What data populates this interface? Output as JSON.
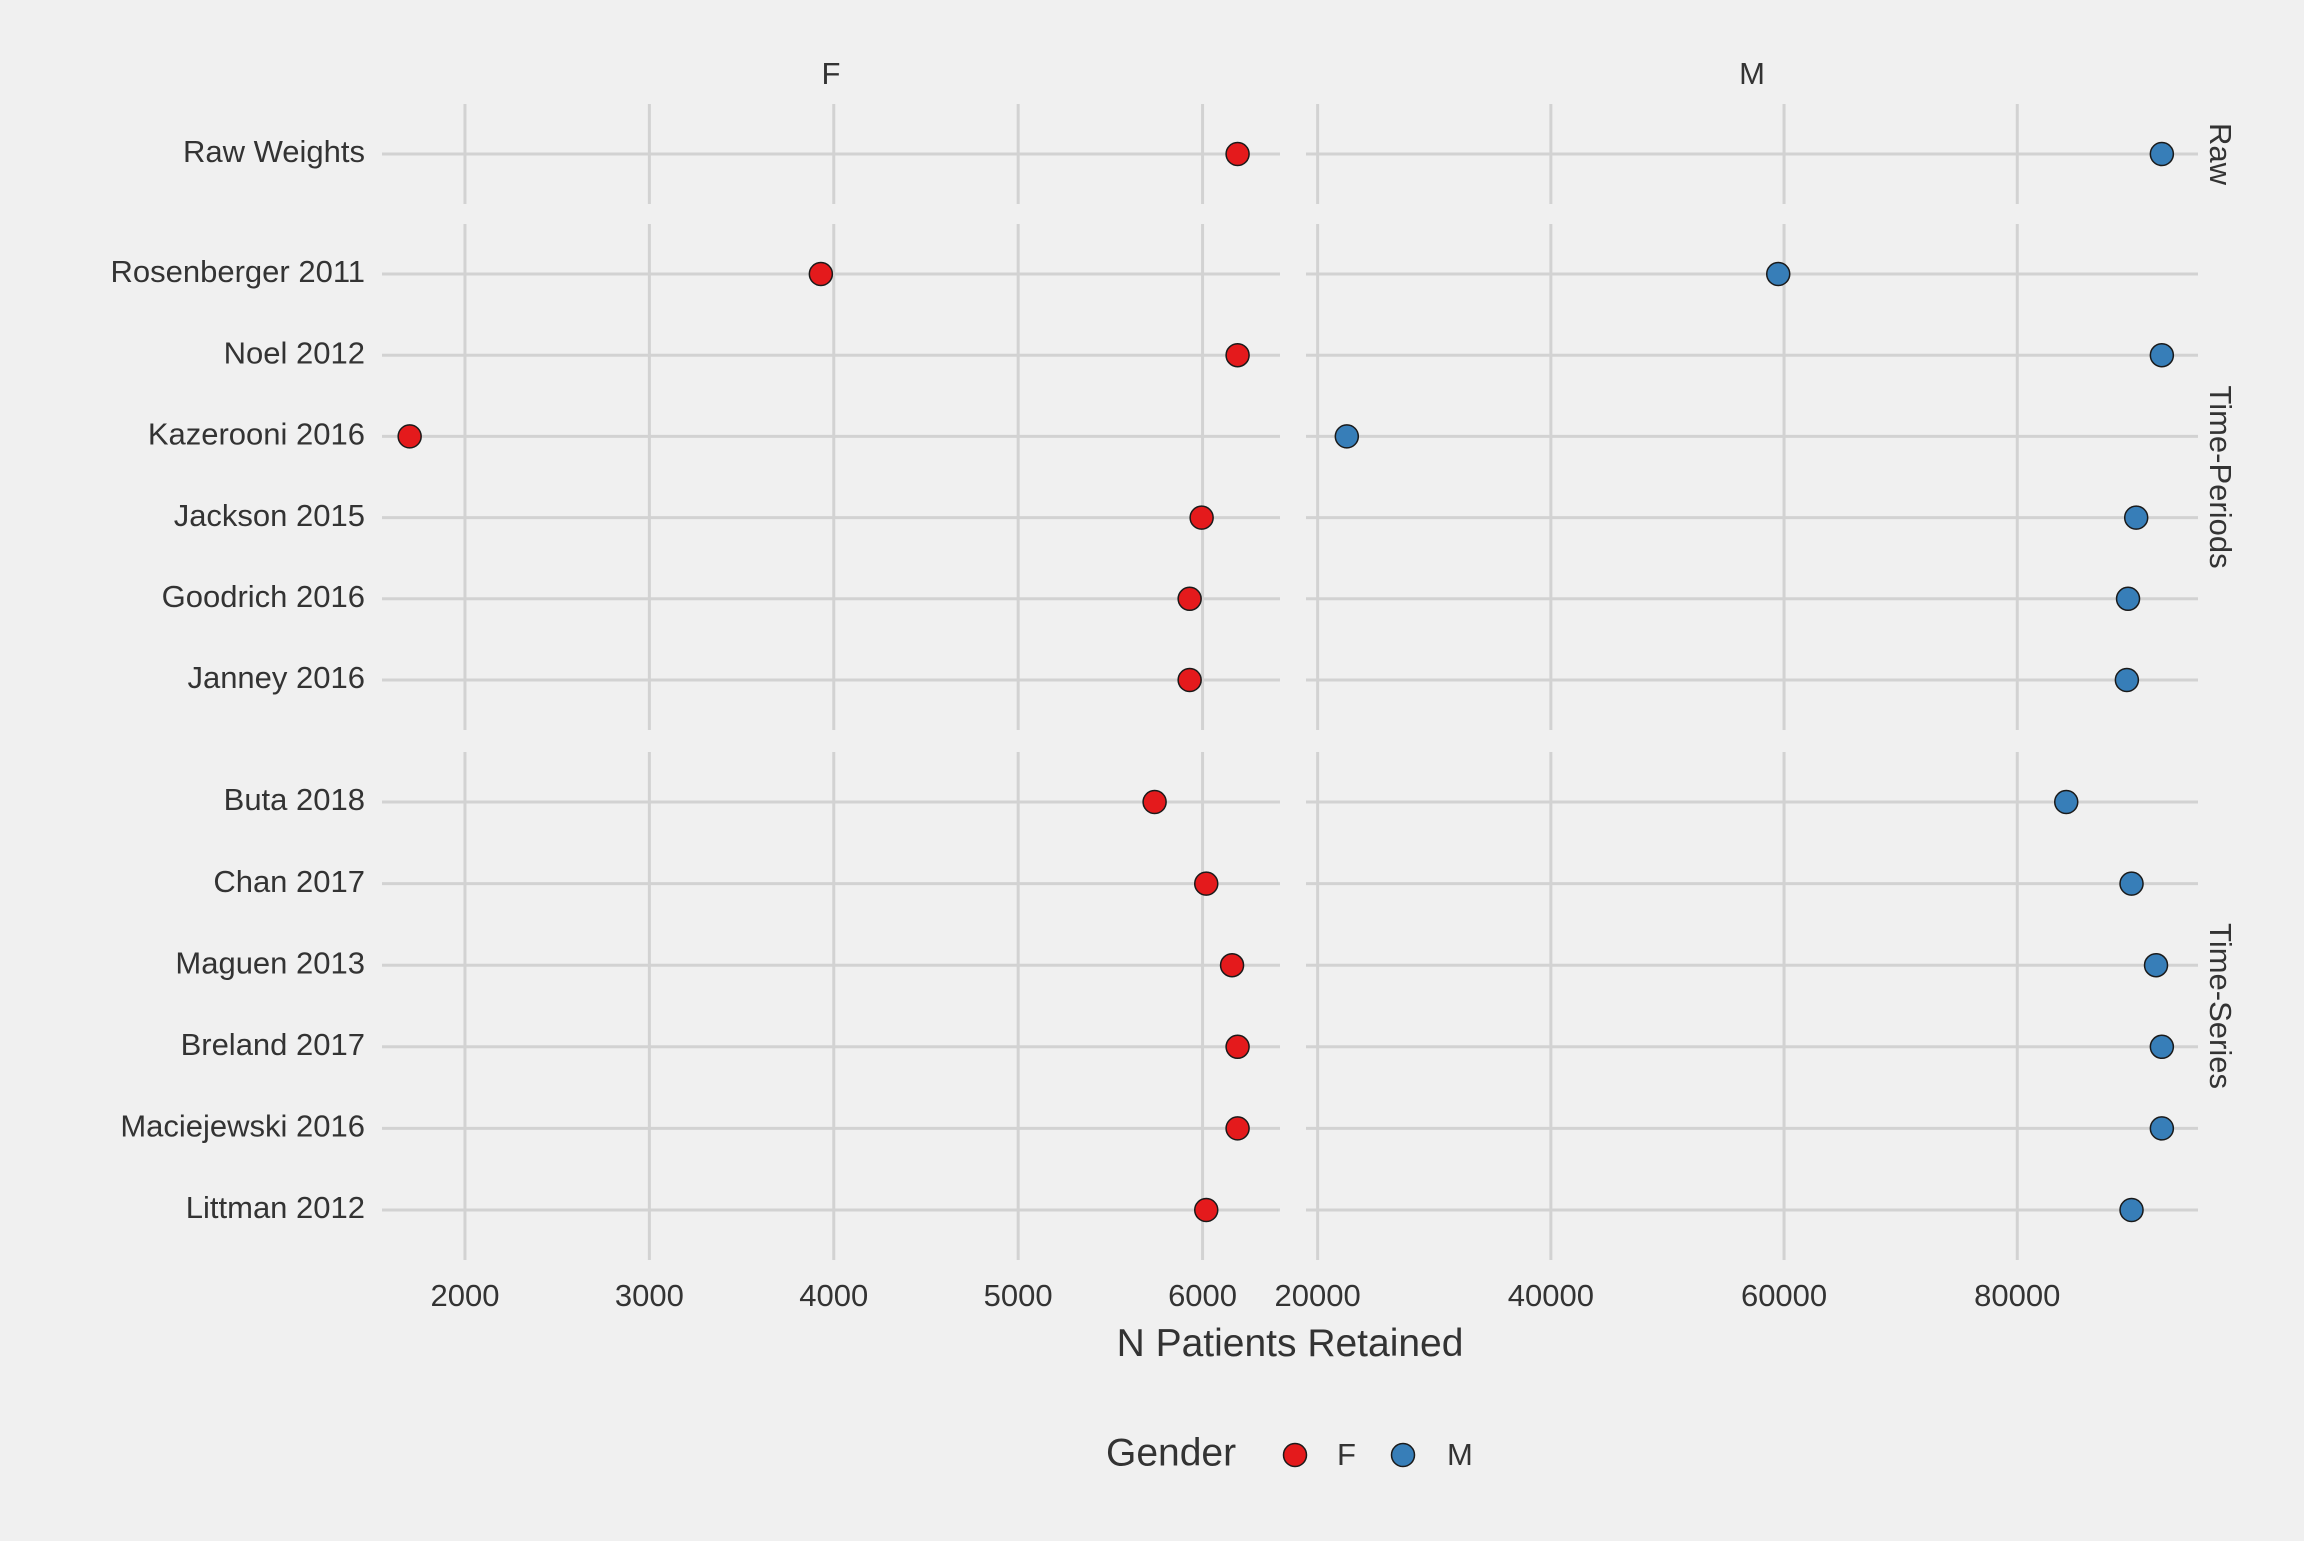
{
  "chart_data": {
    "type": "scatter",
    "title": "",
    "xlabel": "N Patients Retained",
    "ylabel": "",
    "facet_columns": [
      {
        "name": "F",
        "xlim": [
          1550,
          6420
        ],
        "ticks": [
          2000,
          3000,
          4000,
          5000,
          6000
        ],
        "tick_labels": [
          "2000",
          "3000",
          "4000",
          "5000",
          "6000"
        ]
      },
      {
        "name": "M",
        "xlim": [
          19000,
          95500
        ],
        "ticks": [
          20000,
          40000,
          60000,
          80000
        ],
        "tick_labels": [
          "20000",
          "40000",
          "60000",
          "80000"
        ]
      }
    ],
    "facet_rows": [
      {
        "name": "Raw",
        "categories": [
          "Raw Weights"
        ]
      },
      {
        "name": "Time-Periods",
        "categories": [
          "Rosenberger 2011",
          "Noel 2012",
          "Kazerooni 2016",
          "Jackson 2015",
          "Goodrich 2016",
          "Janney 2016"
        ]
      },
      {
        "name": "Time-Series",
        "categories": [
          "Buta 2018",
          "Chan 2017",
          "Maguen 2013",
          "Breland 2017",
          "Maciejewski 2016",
          "Littman 2012"
        ]
      }
    ],
    "series": [
      {
        "name": "F",
        "color": "#e41a1c",
        "values": {
          "Raw Weights": 6190,
          "Rosenberger 2011": 3930,
          "Noel 2012": 6190,
          "Kazerooni 2016": 1700,
          "Jackson 2015": 5995,
          "Goodrich 2016": 5930,
          "Janney 2016": 5930,
          "Buta 2018": 5740,
          "Chan 2017": 6020,
          "Maguen 2013": 6160,
          "Breland 2017": 6190,
          "Maciejewski 2016": 6190,
          "Littman 2012": 6020
        }
      },
      {
        "name": "M",
        "color": "#377eb8",
        "values": {
          "Raw Weights": 92400,
          "Rosenberger 2011": 59500,
          "Noel 2012": 92400,
          "Kazerooni 2016": 22500,
          "Jackson 2015": 90200,
          "Goodrich 2016": 89500,
          "Janney 2016": 89400,
          "Buta 2018": 84200,
          "Chan 2017": 89800,
          "Maguen 2013": 91900,
          "Breland 2017": 92400,
          "Maciejewski 2016": 92400,
          "Littman 2012": 89800
        }
      }
    ],
    "legend": {
      "title": "Gender",
      "position": "bottom",
      "entries": [
        "F",
        "M"
      ]
    },
    "grid": true
  }
}
